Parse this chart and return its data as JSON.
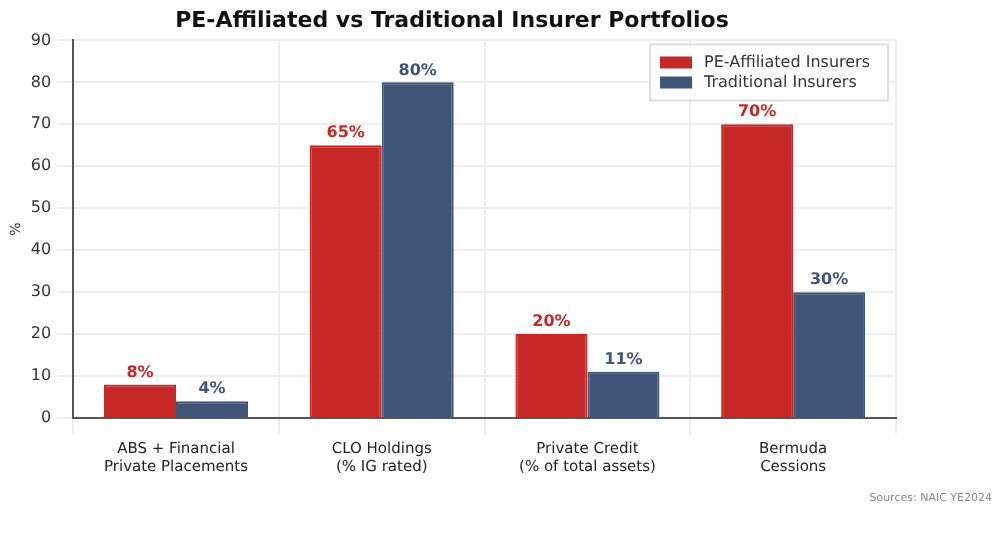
{
  "chart_data": {
    "type": "bar",
    "title": "PE-Affiliated vs Traditional Insurer Portfolios",
    "categories": [
      "ABS + Financial\nPrivate Placements",
      "CLO Holdings\n(% IG rated)",
      "Private Credit\n(% of total assets)",
      "Bermuda\nCessions"
    ],
    "series": [
      {
        "name": "PE-Affiliated Insurers",
        "color": "#c62828",
        "values": [
          8,
          65,
          20,
          70
        ],
        "value_labels": [
          "8%",
          "65%",
          "20%",
          "70%"
        ]
      },
      {
        "name": "Traditional Insurers",
        "color": "#3f5577",
        "values": [
          4,
          80,
          11,
          30
        ],
        "value_labels": [
          "4%",
          "80%",
          "11%",
          "30%"
        ]
      }
    ],
    "ylabel": "%",
    "ylim": [
      0,
      90
    ],
    "yticks": [
      0,
      10,
      20,
      30,
      40,
      50,
      60,
      70,
      80,
      90
    ],
    "grid": true,
    "legend": "top right",
    "annotations": [
      "Sources: NAIC YE2024"
    ]
  }
}
